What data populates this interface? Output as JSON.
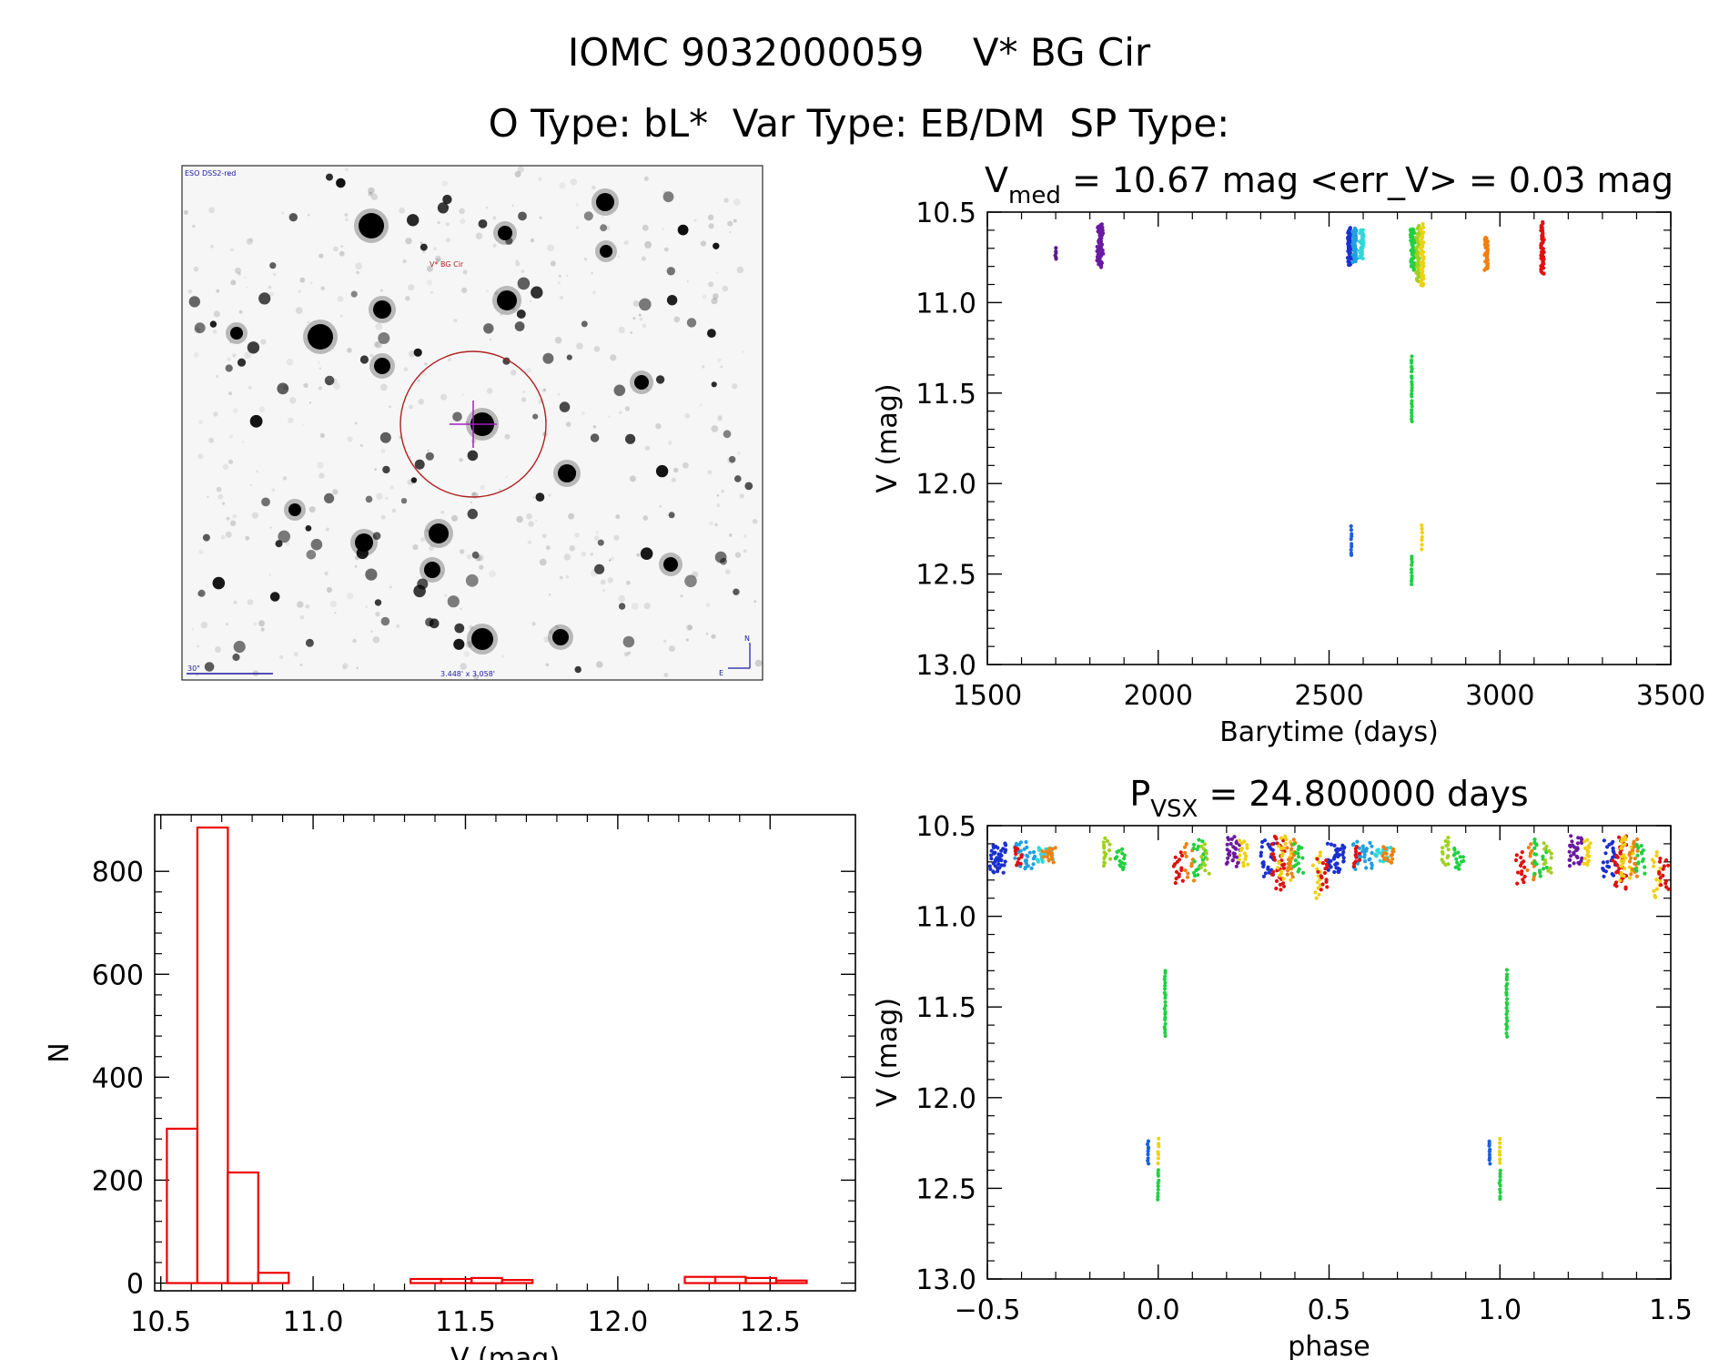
{
  "header": {
    "title": "IOMC 9032000059    V* BG Cir",
    "subtitle": "O Type: bL*  Var Type: EB/DM  SP Type:"
  },
  "finder": {
    "survey_label": "ESO DSS2-red",
    "target_label": "V* BG Cir",
    "scale_label": "30\"",
    "fov_label": "3.448' x 3.058'",
    "north_label": "N",
    "east_label": "E",
    "colors": {
      "circle": "#b02020",
      "crosshair": "#a020c0",
      "text": "#1a1aa0"
    }
  },
  "chart_data": [
    {
      "id": "lightcurve",
      "type": "scatter",
      "title_main": "V",
      "title_sub": "med",
      "title_rest": " = 10.67 mag <err_V> = 0.03 mag",
      "xlabel": "Barytime (days)",
      "ylabel": "V (mag)",
      "xlim": [
        1500,
        3500
      ],
      "ylim": [
        13.0,
        10.5
      ],
      "xticks": [
        1500,
        2000,
        2500,
        3000,
        3500
      ],
      "yticks": [
        10.5,
        11.0,
        11.5,
        12.0,
        12.5,
        13.0
      ],
      "xtick_labels": [
        "1500",
        "2000",
        "2500",
        "3000",
        "3500"
      ],
      "ytick_labels": [
        "10.5",
        "11.0",
        "11.5",
        "12.0",
        "12.5",
        "13.0"
      ],
      "clusters": [
        {
          "x": 1700,
          "w": 4,
          "ymin": 10.7,
          "ymax": 10.76,
          "color": "#5a1a8c",
          "n": 6
        },
        {
          "x": 1830,
          "w": 18,
          "ymin": 10.57,
          "ymax": 10.8,
          "color": "#6a1aa0",
          "n": 60
        },
        {
          "x": 2560,
          "w": 12,
          "ymin": 10.59,
          "ymax": 10.79,
          "color": "#1a30d0",
          "n": 50
        },
        {
          "x": 2575,
          "w": 12,
          "ymin": 10.59,
          "ymax": 10.78,
          "color": "#20a0e0",
          "n": 40
        },
        {
          "x": 2595,
          "w": 12,
          "ymin": 10.6,
          "ymax": 10.76,
          "color": "#30d8d8",
          "n": 30
        },
        {
          "x": 2745,
          "w": 14,
          "ymin": 10.59,
          "ymax": 10.82,
          "color": "#20d040",
          "n": 50
        },
        {
          "x": 2760,
          "w": 12,
          "ymin": 10.58,
          "ymax": 10.88,
          "color": "#a0d020",
          "n": 40
        },
        {
          "x": 2772,
          "w": 10,
          "ymin": 10.57,
          "ymax": 10.91,
          "color": "#f0d010",
          "n": 40
        },
        {
          "x": 2960,
          "w": 10,
          "ymin": 10.64,
          "ymax": 10.82,
          "color": "#f08010",
          "n": 35
        },
        {
          "x": 3125,
          "w": 10,
          "ymin": 10.56,
          "ymax": 10.84,
          "color": "#e01010",
          "n": 45
        },
        {
          "x": 2742,
          "w": 2,
          "ymin": 11.3,
          "ymax": 11.66,
          "color": "#20d040",
          "n": 22
        },
        {
          "x": 2565,
          "w": 2,
          "ymin": 12.24,
          "ymax": 12.4,
          "color": "#1a60e0",
          "n": 10
        },
        {
          "x": 2742,
          "w": 2,
          "ymin": 12.4,
          "ymax": 12.56,
          "color": "#20d040",
          "n": 10
        },
        {
          "x": 2772,
          "w": 2,
          "ymin": 12.23,
          "ymax": 12.36,
          "color": "#f0d010",
          "n": 7
        }
      ]
    },
    {
      "id": "phased",
      "type": "scatter",
      "title_main": "P",
      "title_sub": "VSX",
      "title_rest": " = 24.800000 days",
      "xlabel": "phase",
      "ylabel": "V (mag)",
      "xlim": [
        -0.5,
        1.5
      ],
      "ylim": [
        13.0,
        10.5
      ],
      "xticks": [
        -0.5,
        0.0,
        0.5,
        1.0,
        1.5
      ],
      "yticks": [
        10.5,
        11.0,
        11.5,
        12.0,
        12.5,
        13.0
      ],
      "xtick_labels": [
        "−0.5",
        "0.0",
        "0.5",
        "1.0",
        "1.5"
      ],
      "ytick_labels": [
        "10.5",
        "11.0",
        "11.5",
        "12.0",
        "12.5",
        "13.0"
      ],
      "clusters": [
        {
          "x": 0.52,
          "w": 0.05,
          "ymin": 10.6,
          "ymax": 10.76,
          "color": "#1a30d0",
          "n": 40
        },
        {
          "x": 0.6,
          "w": 0.06,
          "ymin": 10.59,
          "ymax": 10.74,
          "color": "#20a0e0",
          "n": 30
        },
        {
          "x": 0.66,
          "w": 0.05,
          "ymin": 10.62,
          "ymax": 10.7,
          "color": "#30d8d8",
          "n": 20
        },
        {
          "x": 0.67,
          "w": 0.04,
          "ymin": 10.62,
          "ymax": 10.7,
          "color": "#f08010",
          "n": 15
        },
        {
          "x": 0.58,
          "w": 0.02,
          "ymin": 10.62,
          "ymax": 10.72,
          "color": "#e01010",
          "n": 10
        },
        {
          "x": 0.84,
          "w": 0.02,
          "ymin": 10.57,
          "ymax": 10.72,
          "color": "#a0d020",
          "n": 15
        },
        {
          "x": 0.88,
          "w": 0.03,
          "ymin": 10.63,
          "ymax": 10.74,
          "color": "#20d040",
          "n": 15
        },
        {
          "x": 1.06,
          "w": 0.03,
          "ymin": 10.65,
          "ymax": 10.82,
          "color": "#e01010",
          "n": 15
        },
        {
          "x": 1.09,
          "w": 0.03,
          "ymin": 10.6,
          "ymax": 10.8,
          "color": "#f08010",
          "n": 12
        },
        {
          "x": 1.12,
          "w": 0.04,
          "ymin": 10.58,
          "ymax": 10.78,
          "color": "#20d040",
          "n": 20
        },
        {
          "x": 1.14,
          "w": 0.03,
          "ymin": 10.6,
          "ymax": 10.76,
          "color": "#a0d020",
          "n": 12
        },
        {
          "x": 1.22,
          "w": 0.04,
          "ymin": 10.56,
          "ymax": 10.72,
          "color": "#6a1aa0",
          "n": 30
        },
        {
          "x": 1.25,
          "w": 0.03,
          "ymin": 10.58,
          "ymax": 10.72,
          "color": "#f0d010",
          "n": 15
        },
        {
          "x": 1.32,
          "w": 0.04,
          "ymin": 10.58,
          "ymax": 10.78,
          "color": "#1a30d0",
          "n": 25
        },
        {
          "x": 1.35,
          "w": 0.04,
          "ymin": 10.56,
          "ymax": 10.85,
          "color": "#e01010",
          "n": 35
        },
        {
          "x": 1.37,
          "w": 0.04,
          "ymin": 10.56,
          "ymax": 10.8,
          "color": "#f0d010",
          "n": 25
        },
        {
          "x": 1.39,
          "w": 0.03,
          "ymin": 10.58,
          "ymax": 10.78,
          "color": "#f08010",
          "n": 20
        },
        {
          "x": 1.41,
          "w": 0.03,
          "ymin": 10.6,
          "ymax": 10.76,
          "color": "#20d040",
          "n": 15
        },
        {
          "x": 1.46,
          "w": 0.03,
          "ymin": 10.65,
          "ymax": 10.9,
          "color": "#f0d010",
          "n": 15
        },
        {
          "x": 1.48,
          "w": 0.03,
          "ymin": 10.68,
          "ymax": 10.85,
          "color": "#e01010",
          "n": 15
        },
        {
          "x": -0.47,
          "w": 0.05,
          "ymin": 10.6,
          "ymax": 10.76,
          "color": "#1a30d0",
          "n": 40
        },
        {
          "x": -0.39,
          "w": 0.06,
          "ymin": 10.59,
          "ymax": 10.74,
          "color": "#20a0e0",
          "n": 30
        },
        {
          "x": -0.33,
          "w": 0.05,
          "ymin": 10.62,
          "ymax": 10.7,
          "color": "#30d8d8",
          "n": 20
        },
        {
          "x": -0.32,
          "w": 0.04,
          "ymin": 10.62,
          "ymax": 10.7,
          "color": "#f08010",
          "n": 15
        },
        {
          "x": -0.41,
          "w": 0.02,
          "ymin": 10.62,
          "ymax": 10.72,
          "color": "#e01010",
          "n": 10
        },
        {
          "x": -0.15,
          "w": 0.02,
          "ymin": 10.57,
          "ymax": 10.72,
          "color": "#a0d020",
          "n": 15
        },
        {
          "x": -0.11,
          "w": 0.03,
          "ymin": 10.63,
          "ymax": 10.74,
          "color": "#20d040",
          "n": 15
        },
        {
          "x": 0.06,
          "w": 0.03,
          "ymin": 10.65,
          "ymax": 10.82,
          "color": "#e01010",
          "n": 15
        },
        {
          "x": 0.09,
          "w": 0.03,
          "ymin": 10.6,
          "ymax": 10.8,
          "color": "#f08010",
          "n": 12
        },
        {
          "x": 0.12,
          "w": 0.04,
          "ymin": 10.58,
          "ymax": 10.78,
          "color": "#20d040",
          "n": 20
        },
        {
          "x": 0.14,
          "w": 0.03,
          "ymin": 10.6,
          "ymax": 10.76,
          "color": "#a0d020",
          "n": 12
        },
        {
          "x": 0.22,
          "w": 0.04,
          "ymin": 10.56,
          "ymax": 10.72,
          "color": "#6a1aa0",
          "n": 30
        },
        {
          "x": 0.25,
          "w": 0.03,
          "ymin": 10.58,
          "ymax": 10.72,
          "color": "#f0d010",
          "n": 15
        },
        {
          "x": 0.32,
          "w": 0.04,
          "ymin": 10.58,
          "ymax": 10.78,
          "color": "#1a30d0",
          "n": 25
        },
        {
          "x": 0.35,
          "w": 0.04,
          "ymin": 10.56,
          "ymax": 10.85,
          "color": "#e01010",
          "n": 35
        },
        {
          "x": 0.37,
          "w": 0.04,
          "ymin": 10.56,
          "ymax": 10.8,
          "color": "#f0d010",
          "n": 25
        },
        {
          "x": 0.39,
          "w": 0.03,
          "ymin": 10.58,
          "ymax": 10.78,
          "color": "#f08010",
          "n": 20
        },
        {
          "x": 0.41,
          "w": 0.03,
          "ymin": 10.6,
          "ymax": 10.76,
          "color": "#20d040",
          "n": 15
        },
        {
          "x": 0.46,
          "w": 0.03,
          "ymin": 10.65,
          "ymax": 10.9,
          "color": "#f0d010",
          "n": 15
        },
        {
          "x": 0.48,
          "w": 0.03,
          "ymin": 10.68,
          "ymax": 10.85,
          "color": "#e01010",
          "n": 15
        },
        {
          "x": 0.02,
          "w": 0.003,
          "ymin": 11.3,
          "ymax": 11.66,
          "color": "#20d040",
          "n": 22
        },
        {
          "x": 1.02,
          "w": 0.003,
          "ymin": 11.3,
          "ymax": 11.66,
          "color": "#20d040",
          "n": 22
        },
        {
          "x": -0.03,
          "w": 0.003,
          "ymin": 12.24,
          "ymax": 12.36,
          "color": "#1a60e0",
          "n": 9
        },
        {
          "x": 0.97,
          "w": 0.003,
          "ymin": 12.24,
          "ymax": 12.36,
          "color": "#1a60e0",
          "n": 9
        },
        {
          "x": 0.0,
          "w": 0.003,
          "ymin": 12.4,
          "ymax": 12.56,
          "color": "#20d040",
          "n": 10
        },
        {
          "x": 1.0,
          "w": 0.003,
          "ymin": 12.4,
          "ymax": 12.56,
          "color": "#20d040",
          "n": 10
        },
        {
          "x": 0.0,
          "w": 0.003,
          "ymin": 12.23,
          "ymax": 12.36,
          "color": "#f0d010",
          "n": 7
        },
        {
          "x": 1.0,
          "w": 0.003,
          "ymin": 12.23,
          "ymax": 12.36,
          "color": "#f0d010",
          "n": 7
        }
      ]
    },
    {
      "id": "histogram",
      "type": "bar",
      "xlabel": "V (mag)",
      "ylabel": "N",
      "xlim": [
        10.48,
        12.78
      ],
      "ylim": [
        -15,
        910
      ],
      "xticks": [
        10.5,
        11.0,
        11.5,
        12.0,
        12.5
      ],
      "yticks": [
        0,
        200,
        400,
        600,
        800
      ],
      "xtick_labels": [
        "10.5",
        "11.0",
        "11.5",
        "12.0",
        "12.5"
      ],
      "ytick_labels": [
        "0",
        "200",
        "400",
        "600",
        "800"
      ],
      "bin_width": 0.1,
      "bin_starts": [
        10.52,
        10.62,
        10.72,
        10.82,
        10.92,
        11.02,
        11.12,
        11.22,
        11.32,
        11.42,
        11.52,
        11.62,
        11.72,
        11.82,
        11.92,
        12.02,
        12.12,
        12.22,
        12.32,
        12.42,
        12.52
      ],
      "values": [
        300,
        885,
        215,
        20,
        0,
        0,
        0,
        0,
        8,
        8,
        10,
        6,
        0,
        0,
        0,
        0,
        0,
        12,
        12,
        10,
        5
      ],
      "color": "#ee0000"
    }
  ]
}
